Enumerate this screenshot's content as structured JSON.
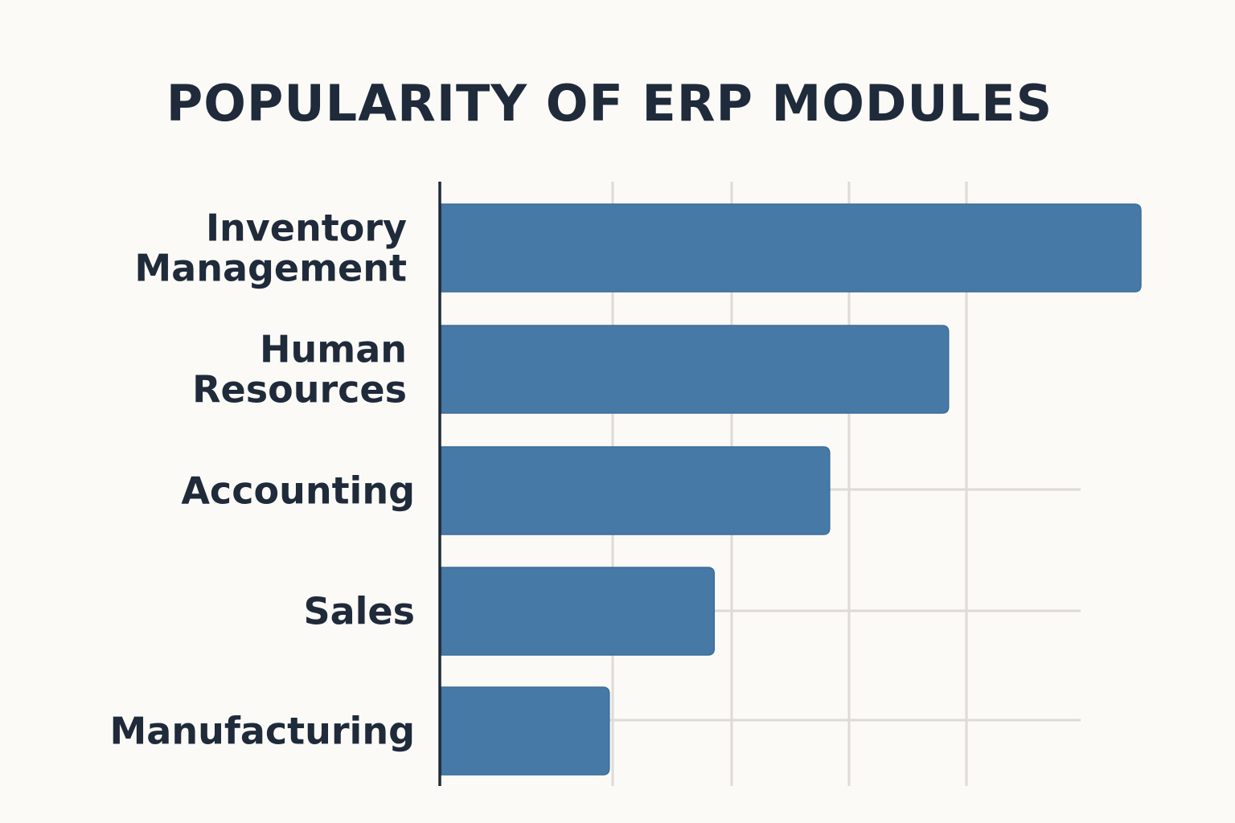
{
  "chart_data": {
    "type": "bar",
    "orientation": "horizontal",
    "title": "POPULARITY OF ERP MODULES",
    "xlabel": "",
    "ylabel": "",
    "categories": [
      "Inventory Management",
      "Human Resources",
      "Accounting",
      "Sales",
      "Manufacturing"
    ],
    "category_lines": [
      [
        "Inventory",
        "Management"
      ],
      [
        "Human",
        "Resources"
      ],
      [
        "Accounting"
      ],
      [
        "Sales"
      ],
      [
        "Manufacturing"
      ]
    ],
    "values": [
      100,
      72.5,
      55.5,
      39,
      24
    ],
    "xlim": [
      0,
      100
    ],
    "grid": true,
    "legend": "none",
    "colors": {
      "bar": "#4679a6",
      "bar_edge": "#3d6d98",
      "axis": "#1f2a3a",
      "grid": "#dedbd6",
      "text": "#1f2a3a",
      "background": "#fbfaf7"
    }
  }
}
